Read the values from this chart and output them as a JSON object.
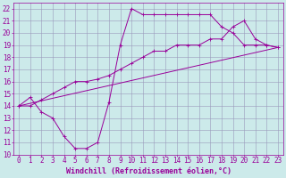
{
  "xlabel": "Windchill (Refroidissement éolien,°C)",
  "background_color": "#cceaea",
  "grid_color": "#9999bb",
  "line_color": "#990099",
  "xlim": [
    -0.5,
    23.5
  ],
  "ylim": [
    10,
    22.5
  ],
  "xticks": [
    0,
    1,
    2,
    3,
    4,
    5,
    6,
    7,
    8,
    9,
    10,
    11,
    12,
    13,
    14,
    15,
    16,
    17,
    18,
    19,
    20,
    21,
    22,
    23
  ],
  "yticks": [
    10,
    11,
    12,
    13,
    14,
    15,
    16,
    17,
    18,
    19,
    20,
    21,
    22
  ],
  "line1_x": [
    0,
    1,
    2,
    3,
    4,
    5,
    6,
    7,
    8,
    9,
    10,
    11,
    12,
    13,
    14,
    15,
    16,
    17,
    18,
    19,
    20,
    21,
    22,
    23
  ],
  "line1_y": [
    14.0,
    14.7,
    13.5,
    13.0,
    11.5,
    10.5,
    10.5,
    11.0,
    14.3,
    19.0,
    22.0,
    21.5,
    21.5,
    21.5,
    21.5,
    21.5,
    21.5,
    21.5,
    20.5,
    20.0,
    19.0,
    19.0,
    19.0,
    18.8
  ],
  "line2_x": [
    0,
    1,
    2,
    3,
    4,
    5,
    6,
    7,
    8,
    9,
    10,
    11,
    12,
    13,
    14,
    15,
    16,
    17,
    18,
    19,
    20,
    21,
    22,
    23
  ],
  "line2_y": [
    14.0,
    14.0,
    14.5,
    15.0,
    15.5,
    16.0,
    16.0,
    16.2,
    16.5,
    17.0,
    17.5,
    18.0,
    18.5,
    18.5,
    19.0,
    19.0,
    19.0,
    19.5,
    19.5,
    20.5,
    21.0,
    19.5,
    19.0,
    18.8
  ],
  "line3_x": [
    0,
    23
  ],
  "line3_y": [
    14.0,
    18.8
  ],
  "font_size": 6,
  "tick_font_size": 5.5,
  "lw": 0.7,
  "ms": 2.5
}
